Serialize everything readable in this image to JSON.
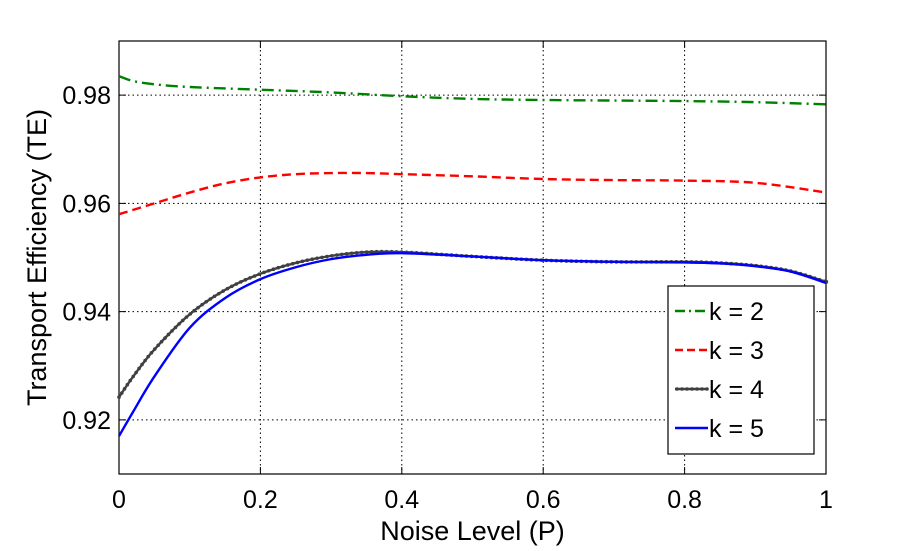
{
  "chart_data": {
    "type": "line",
    "title": "",
    "xlabel": "Noise Level (P)",
    "ylabel": "Transport Efficiency (TE)",
    "xlim": [
      0,
      1
    ],
    "ylim": [
      0.91,
      0.99
    ],
    "grid": true,
    "legend_position": "bottom-right",
    "xticks": [
      0,
      0.2,
      0.4,
      0.6,
      0.8,
      1
    ],
    "xtick_labels": [
      "0",
      "0.2",
      "0.4",
      "0.6",
      "0.8",
      "1"
    ],
    "yticks": [
      0.92,
      0.94,
      0.96,
      0.98
    ],
    "ytick_labels": [
      "0.92",
      "0.94",
      "0.96",
      "0.98"
    ],
    "series": [
      {
        "name": "k = 2",
        "color": "#008000",
        "style": "dashdot",
        "x": [
          0,
          0.02,
          0.05,
          0.1,
          0.2,
          0.3,
          0.4,
          0.5,
          0.6,
          0.7,
          0.8,
          0.9,
          1.0
        ],
        "y": [
          0.9835,
          0.9826,
          0.982,
          0.9815,
          0.981,
          0.9805,
          0.9798,
          0.9793,
          0.9791,
          0.979,
          0.9789,
          0.9787,
          0.9783
        ]
      },
      {
        "name": "k = 3",
        "color": "#ff0000",
        "style": "dashed",
        "x": [
          0,
          0.05,
          0.1,
          0.15,
          0.2,
          0.25,
          0.3,
          0.35,
          0.4,
          0.5,
          0.6,
          0.7,
          0.8,
          0.9,
          1.0
        ],
        "y": [
          0.958,
          0.96,
          0.962,
          0.9637,
          0.9648,
          0.9654,
          0.9656,
          0.9656,
          0.9654,
          0.965,
          0.9645,
          0.9643,
          0.9642,
          0.9638,
          0.962
        ]
      },
      {
        "name": "k = 4",
        "color": "#404040",
        "style": "solid-dots",
        "x": [
          0,
          0.02,
          0.05,
          0.1,
          0.15,
          0.2,
          0.25,
          0.3,
          0.35,
          0.4,
          0.5,
          0.6,
          0.7,
          0.8,
          0.85,
          0.9,
          0.95,
          1.0
        ],
        "y": [
          0.9242,
          0.928,
          0.933,
          0.9395,
          0.944,
          0.947,
          0.949,
          0.9503,
          0.951,
          0.951,
          0.9502,
          0.9495,
          0.9492,
          0.9492,
          0.949,
          0.9485,
          0.9475,
          0.9455
        ]
      },
      {
        "name": "k = 5",
        "color": "#0000ff",
        "style": "solid",
        "x": [
          0,
          0.02,
          0.05,
          0.1,
          0.15,
          0.2,
          0.25,
          0.3,
          0.35,
          0.4,
          0.5,
          0.6,
          0.7,
          0.8,
          0.85,
          0.9,
          0.95,
          1.0
        ],
        "y": [
          0.917,
          0.9215,
          0.928,
          0.937,
          0.9425,
          0.946,
          0.9482,
          0.9497,
          0.9505,
          0.9508,
          0.9502,
          0.9495,
          0.9492,
          0.9491,
          0.9489,
          0.9484,
          0.9474,
          0.9453
        ]
      }
    ]
  }
}
